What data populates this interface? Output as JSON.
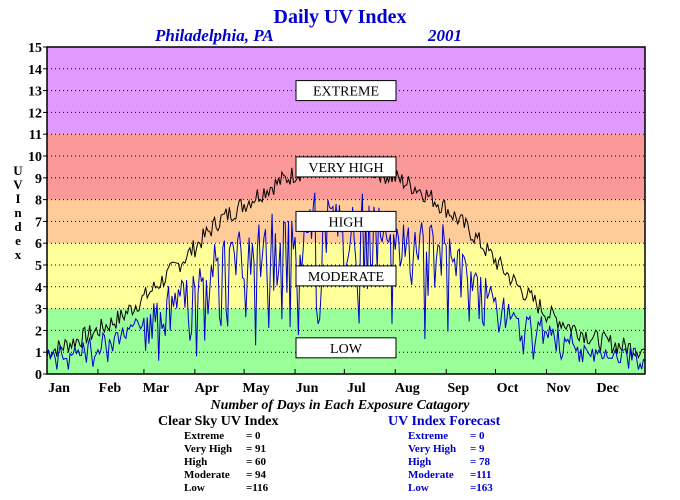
{
  "chart_data": {
    "type": "line",
    "title": "Daily UV Index",
    "location": "Philadelphia, PA",
    "year": "2001",
    "ylabel": "UV Index",
    "xlabel": "",
    "ylim": [
      0,
      15
    ],
    "yticks": [
      "0",
      "1",
      "2",
      "3",
      "4",
      "5",
      "6",
      "7",
      "8",
      "9",
      "10",
      "11",
      "12",
      "13",
      "14",
      "15"
    ],
    "month_labels": [
      "Jan",
      "Feb",
      "Mar",
      "Apr",
      "May",
      "Jun",
      "Jul",
      "Aug",
      "Sep",
      "Oct",
      "Nov",
      "Dec"
    ],
    "grid": true,
    "bands": [
      {
        "name": "EXTREME",
        "from": 11,
        "to": 15,
        "color": "#df99ff",
        "label_at": 13
      },
      {
        "name": "VERY HIGH",
        "from": 8,
        "to": 11,
        "color": "#fb9999",
        "label_at": 9.5
      },
      {
        "name": "HIGH",
        "from": 6,
        "to": 8,
        "color": "#ffcc99",
        "label_at": 7
      },
      {
        "name": "MODERATE",
        "from": 3,
        "to": 6,
        "color": "#ffff99",
        "label_at": 4.5
      },
      {
        "name": "LOW",
        "from": 0,
        "to": 3,
        "color": "#99ff99",
        "label_at": 1.2
      }
    ],
    "series": [
      {
        "name": "Clear Sky UV Index",
        "color": "#000000",
        "x_day": [
          1,
          15,
          32,
          46,
          60,
          74,
          91,
          105,
          121,
          135,
          152,
          166,
          182,
          196,
          213,
          227,
          244,
          258,
          274,
          288,
          305,
          319,
          335,
          349,
          365
        ],
        "values": [
          1.0,
          1.4,
          2.0,
          2.6,
          3.5,
          4.5,
          5.8,
          7.0,
          7.8,
          8.5,
          9.2,
          9.5,
          9.6,
          9.4,
          9.0,
          8.5,
          7.6,
          6.6,
          5.2,
          4.0,
          2.8,
          2.2,
          1.6,
          1.3,
          1.1
        ]
      },
      {
        "name": "UV Index Forecast",
        "color": "#0000cc",
        "x_day": [
          1,
          15,
          32,
          46,
          60,
          74,
          91,
          105,
          121,
          135,
          152,
          166,
          182,
          196,
          213,
          227,
          244,
          258,
          274,
          288,
          305,
          319,
          335,
          349,
          365
        ],
        "values": [
          0.8,
          1.1,
          1.6,
          2.1,
          2.9,
          3.6,
          4.6,
          5.8,
          6.4,
          7.2,
          7.8,
          8.1,
          8.0,
          7.9,
          7.5,
          7.1,
          6.4,
          5.3,
          3.9,
          3.0,
          2.2,
          1.7,
          1.2,
          1.0,
          0.8
        ]
      }
    ]
  },
  "stats": {
    "caption": "Number of Days in Each Exposure Catagory",
    "clear": {
      "header": "Clear Sky UV Index",
      "rows": [
        {
          "label": "Extreme",
          "value": "=    0"
        },
        {
          "label": "Very High",
          "value": "= 91"
        },
        {
          "label": "High",
          "value": "= 60"
        },
        {
          "label": "Moderate",
          "value": "= 94"
        },
        {
          "label": "Low",
          "value": "=116"
        }
      ]
    },
    "forecast": {
      "header": "UV Index Forecast",
      "rows": [
        {
          "label": "Extreme",
          "value": "=    0"
        },
        {
          "label": "Very High",
          "value": "=    9"
        },
        {
          "label": "High",
          "value": "= 78"
        },
        {
          "label": "Moderate",
          "value": "=111"
        },
        {
          "label": "Low",
          "value": "=163"
        }
      ]
    }
  }
}
